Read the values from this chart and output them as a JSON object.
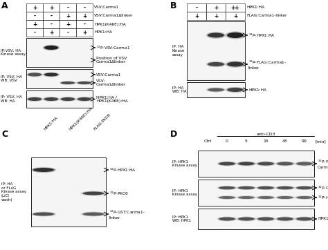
{
  "bg_color": "#ffffff",
  "panels": {
    "A": {
      "label": "A",
      "table_headers": [
        "VSV:Carma1",
        "VSV:Carma1Δlinker",
        "HPK1(K46E):HA",
        "HPK1:HA"
      ],
      "table_data": [
        [
          "+",
          "+",
          "-",
          "-"
        ],
        [
          "-",
          "-",
          "+",
          "+"
        ],
        [
          "+",
          "-",
          "+",
          "-"
        ],
        [
          "-",
          "+",
          "-",
          "+"
        ]
      ]
    },
    "B": {
      "label": "B",
      "table_headers": [
        "HPK1:HA",
        "FLAG:Carma1-linker"
      ],
      "table_data": [
        [
          "-",
          "+",
          "++"
        ],
        [
          "+",
          "+",
          "+"
        ]
      ]
    },
    "C": {
      "label": "C",
      "col_labels": [
        "HPK1:HA",
        "HPK1(K46E):HA",
        "FLAG:PKCθ"
      ]
    },
    "D": {
      "label": "D",
      "col_headers": [
        "Ctrl",
        "0",
        "5",
        "15",
        "45",
        "90"
      ]
    }
  }
}
